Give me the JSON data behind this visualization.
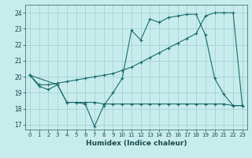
{
  "xlabel": "Humidex (Indice chaleur)",
  "background_color": "#c8ecec",
  "grid_color": "#9ecece",
  "line_color": "#1a6b6b",
  "xlim": [
    -0.5,
    23.5
  ],
  "ylim": [
    16.7,
    24.5
  ],
  "yticks": [
    17,
    18,
    19,
    20,
    21,
    22,
    23,
    24
  ],
  "xticks": [
    0,
    1,
    2,
    3,
    4,
    5,
    6,
    7,
    8,
    9,
    10,
    11,
    12,
    13,
    14,
    15,
    16,
    17,
    18,
    19,
    20,
    21,
    22,
    23
  ],
  "line1_x": [
    0,
    1,
    2,
    3,
    4,
    5,
    6,
    7,
    8,
    9,
    10,
    11,
    12,
    13,
    14,
    15,
    16,
    17,
    18,
    19,
    20,
    21,
    22,
    23
  ],
  "line1_y": [
    20.1,
    19.4,
    19.2,
    19.5,
    18.4,
    18.4,
    18.3,
    16.9,
    18.2,
    19.0,
    19.9,
    22.9,
    22.3,
    23.6,
    23.4,
    23.7,
    23.8,
    23.9,
    23.9,
    22.6,
    19.9,
    18.9,
    18.2,
    18.2
  ],
  "line2_x": [
    0,
    1,
    2,
    3,
    4,
    5,
    6,
    7,
    8,
    9,
    10,
    11,
    12,
    13,
    14,
    15,
    16,
    17,
    18,
    19,
    20,
    21,
    22,
    23
  ],
  "line2_y": [
    20.1,
    19.5,
    19.5,
    19.6,
    19.7,
    19.8,
    19.9,
    20.0,
    20.1,
    20.2,
    20.4,
    20.6,
    20.9,
    21.2,
    21.5,
    21.8,
    22.1,
    22.4,
    22.7,
    23.8,
    24.0,
    24.0,
    24.0,
    18.2
  ],
  "line3_x": [
    0,
    3,
    4,
    5,
    6,
    7,
    8,
    9,
    10,
    11,
    12,
    13,
    14,
    15,
    16,
    17,
    18,
    19,
    20,
    21,
    22,
    23
  ],
  "line3_y": [
    20.1,
    19.5,
    18.4,
    18.4,
    18.4,
    18.4,
    18.3,
    18.3,
    18.3,
    18.3,
    18.3,
    18.3,
    18.3,
    18.3,
    18.3,
    18.3,
    18.3,
    18.3,
    18.3,
    18.3,
    18.2,
    18.2
  ]
}
